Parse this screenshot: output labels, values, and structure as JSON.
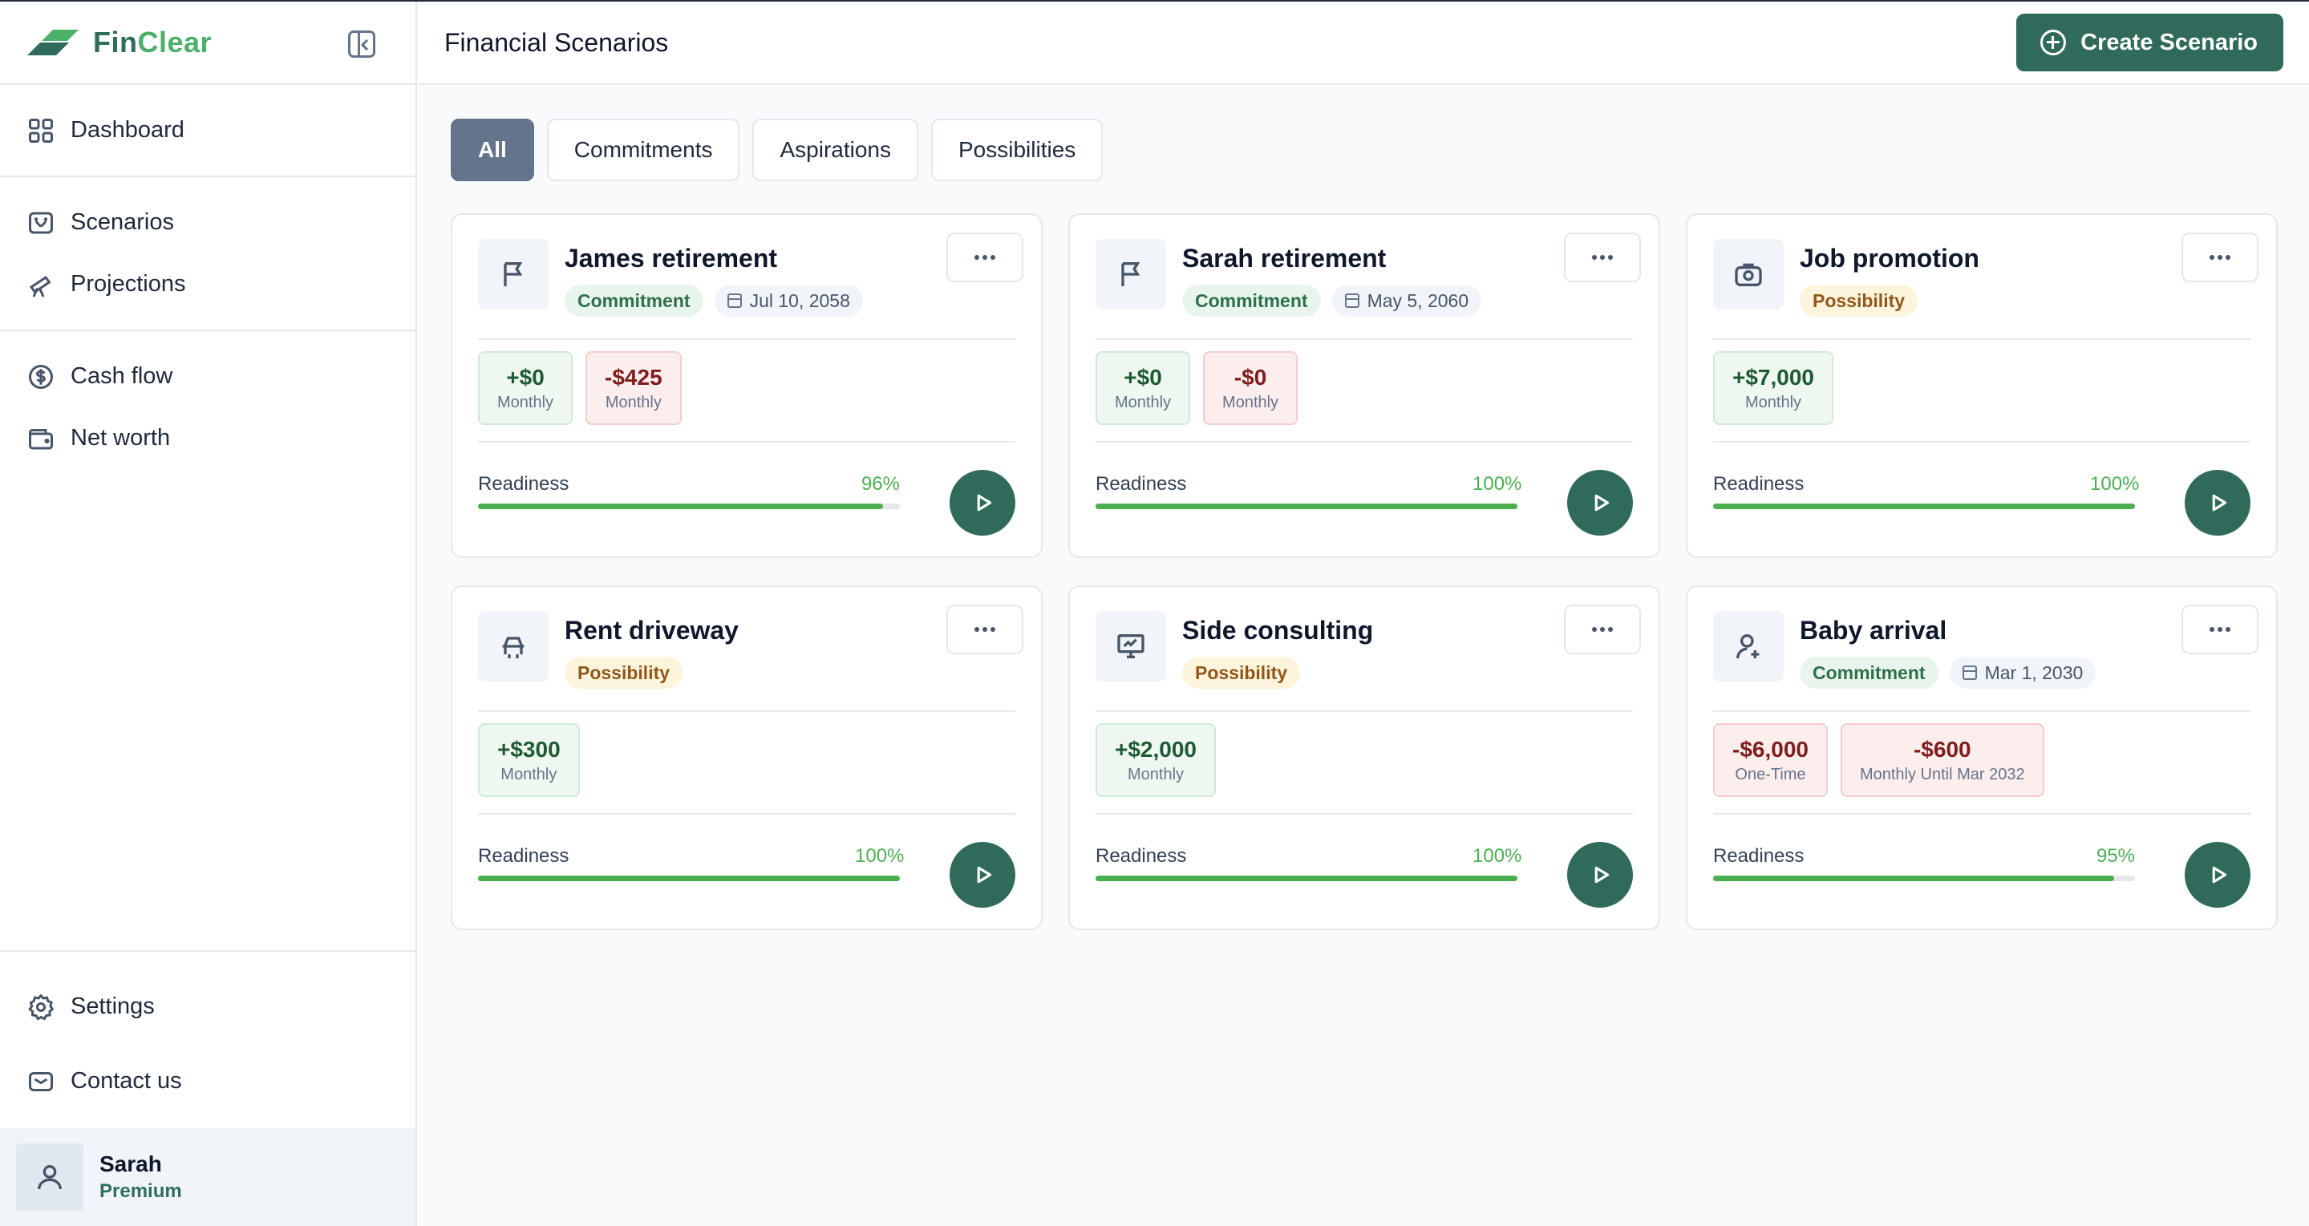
{
  "app": {
    "name_part1": "Fin",
    "name_part2": "Clear",
    "accent": "#2f6a5b",
    "brand_green": "#4caf6a"
  },
  "sidebar": {
    "main_items": [
      {
        "label": "Dashboard",
        "icon": "grid-icon"
      }
    ],
    "plan_items": [
      {
        "label": "Scenarios",
        "icon": "scenario-icon"
      },
      {
        "label": "Projections",
        "icon": "telescope-icon"
      }
    ],
    "money_items": [
      {
        "label": "Cash flow",
        "icon": "dollar-circle-icon"
      },
      {
        "label": "Net worth",
        "icon": "wallet-icon"
      }
    ],
    "bottom_items": [
      {
        "label": "Settings",
        "icon": "gear-icon"
      },
      {
        "label": "Contact us",
        "icon": "mail-icon"
      }
    ],
    "user": {
      "name": "Sarah",
      "plan": "Premium"
    }
  },
  "header": {
    "title": "Financial Scenarios",
    "create_label": "Create Scenario"
  },
  "filters": [
    "All",
    "Commitments",
    "Aspirations",
    "Possibilities"
  ],
  "active_filter": "All",
  "cards": [
    {
      "title": "James retirement",
      "icon": "flag-icon",
      "type": "Commitment",
      "date": "Jul 10, 2058",
      "amounts": [
        {
          "value": "+$0",
          "period": "Monthly",
          "kind": "pos"
        },
        {
          "value": "-$425",
          "period": "Monthly",
          "kind": "neg"
        }
      ],
      "readiness_label": "Readiness",
      "readiness": "96%"
    },
    {
      "title": "Sarah retirement",
      "icon": "flag-icon",
      "type": "Commitment",
      "date": "May 5, 2060",
      "amounts": [
        {
          "value": "+$0",
          "period": "Monthly",
          "kind": "pos"
        },
        {
          "value": "-$0",
          "period": "Monthly",
          "kind": "neg"
        }
      ],
      "readiness_label": "Readiness",
      "readiness": "100%"
    },
    {
      "title": "Job promotion",
      "icon": "briefcase-icon",
      "type": "Possibility",
      "date": "",
      "amounts": [
        {
          "value": "+$7,000",
          "period": "Monthly",
          "kind": "pos"
        }
      ],
      "readiness_label": "Readiness",
      "readiness": "100%"
    },
    {
      "title": "Rent driveway",
      "icon": "car-icon",
      "type": "Possibility",
      "date": "",
      "amounts": [
        {
          "value": "+$300",
          "period": "Monthly",
          "kind": "pos"
        }
      ],
      "readiness_label": "Readiness",
      "readiness": "100%"
    },
    {
      "title": "Side consulting",
      "icon": "presentation-icon",
      "type": "Possibility",
      "date": "",
      "amounts": [
        {
          "value": "+$2,000",
          "period": "Monthly",
          "kind": "pos"
        }
      ],
      "readiness_label": "Readiness",
      "readiness": "100%"
    },
    {
      "title": "Baby arrival",
      "icon": "user-plus-icon",
      "type": "Commitment",
      "date": "Mar 1, 2030",
      "amounts": [
        {
          "value": "-$6,000",
          "period": "One-Time",
          "kind": "neg"
        },
        {
          "value": "-$600",
          "period": "Monthly Until Mar 2032",
          "kind": "neg"
        }
      ],
      "readiness_label": "Readiness",
      "readiness": "95%"
    }
  ]
}
